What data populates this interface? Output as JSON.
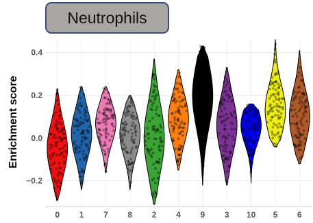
{
  "chart_data": {
    "type": "violin",
    "title": "Neutrophils",
    "xlabel": "",
    "ylabel": "Enrichment score",
    "ylim": [
      -0.32,
      0.46
    ],
    "yticks": [
      -0.2,
      0.0,
      0.2,
      0.4
    ],
    "ytick_labels": [
      "−0.2",
      "0.0",
      "0.2",
      "0.4"
    ],
    "grid": true,
    "categories": [
      "0",
      "1",
      "7",
      "8",
      "2",
      "4",
      "9",
      "3",
      "10",
      "5",
      "6"
    ],
    "series": [
      {
        "category": "0",
        "color": "#ee1111",
        "min": -0.29,
        "max": 0.23,
        "median": -0.07,
        "mode": -0.05
      },
      {
        "category": "1",
        "color": "#2166ac",
        "min": -0.24,
        "max": 0.24,
        "median": 0.0,
        "mode": 0.02
      },
      {
        "category": "7",
        "color": "#ee7ab5",
        "min": -0.16,
        "max": 0.24,
        "median": 0.06,
        "mode": 0.07
      },
      {
        "category": "8",
        "color": "#8c8c8c",
        "min": -0.24,
        "max": 0.2,
        "median": 0.02,
        "mode": 0.02
      },
      {
        "category": "2",
        "color": "#3aa535",
        "min": -0.31,
        "max": 0.37,
        "median": 0.01,
        "mode": 0.0
      },
      {
        "category": "4",
        "color": "#ff7f0e",
        "min": -0.15,
        "max": 0.32,
        "median": 0.08,
        "mode": 0.09
      },
      {
        "category": "9",
        "color": "#000000",
        "min": -0.22,
        "max": 0.43,
        "median": 0.12,
        "mode": 0.2
      },
      {
        "category": "3",
        "color": "#7b3294",
        "min": -0.22,
        "max": 0.33,
        "median": 0.07,
        "mode": 0.06
      },
      {
        "category": "10",
        "color": "#0000ee",
        "min": -0.21,
        "max": 0.16,
        "median": 0.02,
        "mode": 0.06
      },
      {
        "category": "5",
        "color": "#eeee11",
        "min": -0.04,
        "max": 0.46,
        "median": 0.13,
        "mode": 0.13
      },
      {
        "category": "6",
        "color": "#b05a2a",
        "min": -0.12,
        "max": 0.41,
        "median": 0.12,
        "mode": 0.1
      }
    ]
  }
}
